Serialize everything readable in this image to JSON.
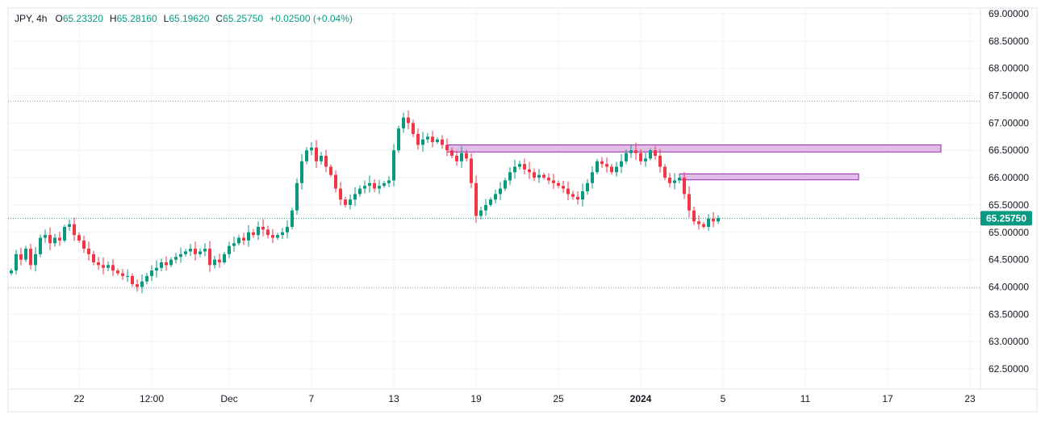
{
  "legend": {
    "symbol_tf": "JPY, 4h",
    "open_label": "O",
    "open": "65.23320",
    "high_label": "H",
    "high": "65.28160",
    "low_label": "L",
    "low": "65.19620",
    "close_label": "C",
    "close": "65.25750",
    "change": "+0.02500 (+0.04%)"
  },
  "colors": {
    "up": "#089981",
    "down": "#f23645",
    "grid": "#f0f3fa",
    "axis_text": "#131722",
    "dotted_line": "#9598a1",
    "last_price_line": "#089981",
    "zone_fill": "#e1bee7",
    "zone_stroke": "#9c27b0"
  },
  "chart_data": {
    "type": "candlestick",
    "title": "",
    "timeframe": "4h",
    "ylim": [
      62.0,
      69.2
    ],
    "yticks": [
      "69.00000",
      "68.50000",
      "68.00000",
      "67.50000",
      "67.00000",
      "66.50000",
      "66.00000",
      "65.50000",
      "65.00000",
      "64.50000",
      "64.00000",
      "63.50000",
      "63.00000",
      "62.50000"
    ],
    "ytick_values": [
      69.0,
      68.5,
      68.0,
      67.5,
      67.0,
      66.5,
      66.0,
      65.5,
      65.0,
      64.5,
      64.0,
      63.5,
      63.0,
      62.5
    ],
    "xticks": [
      {
        "label": "22",
        "bar": 14,
        "bold": false
      },
      {
        "label": "12:00",
        "bar": 29,
        "bold": false
      },
      {
        "label": "Dec",
        "bar": 45,
        "bold": false
      },
      {
        "label": "7",
        "bar": 62,
        "bold": false
      },
      {
        "label": "13",
        "bar": 79,
        "bold": false
      },
      {
        "label": "19",
        "bar": 96,
        "bold": false
      },
      {
        "label": "25",
        "bar": 113,
        "bold": false
      },
      {
        "label": "2024",
        "bar": 130,
        "bold": true
      },
      {
        "label": "5",
        "bar": 147,
        "bold": false
      },
      {
        "label": "11",
        "bar": 164,
        "bold": false
      },
      {
        "label": "17",
        "bar": 181,
        "bold": false
      },
      {
        "label": "23",
        "bar": 198,
        "bold": false
      }
    ],
    "last_price": 65.2575,
    "last_price_label": "65.25750",
    "horizontal_lines": [
      67.4,
      63.98
    ],
    "zones": [
      {
        "bar_start": 90,
        "bar_end": 192,
        "y_low": 66.47,
        "y_high": 66.6
      },
      {
        "bar_start": 138,
        "bar_end": 175,
        "y_low": 65.96,
        "y_high": 66.07
      }
    ],
    "closes": [
      64.3,
      64.6,
      64.5,
      64.7,
      64.4,
      64.6,
      64.9,
      64.95,
      64.8,
      64.9,
      64.85,
      65.1,
      65.15,
      64.95,
      64.85,
      64.7,
      64.6,
      64.45,
      64.4,
      64.35,
      64.4,
      64.3,
      64.25,
      64.2,
      64.2,
      64.05,
      64.0,
      64.1,
      64.2,
      64.3,
      64.35,
      64.45,
      64.4,
      64.5,
      64.55,
      64.6,
      64.65,
      64.7,
      64.6,
      64.65,
      64.7,
      64.4,
      64.5,
      64.45,
      64.6,
      64.75,
      64.8,
      64.9,
      64.85,
      65.0,
      64.95,
      65.1,
      65.05,
      64.95,
      64.9,
      64.95,
      65.0,
      65.1,
      65.4,
      65.9,
      66.3,
      66.5,
      66.55,
      66.3,
      66.4,
      66.2,
      66.05,
      65.8,
      65.6,
      65.5,
      65.6,
      65.7,
      65.8,
      65.85,
      65.9,
      65.8,
      65.85,
      65.9,
      65.95,
      66.5,
      66.9,
      67.1,
      67.0,
      66.8,
      66.6,
      66.7,
      66.75,
      66.65,
      66.7,
      66.6,
      66.5,
      66.4,
      66.3,
      66.45,
      66.35,
      65.9,
      65.3,
      65.4,
      65.5,
      65.6,
      65.7,
      65.8,
      65.95,
      66.1,
      66.2,
      66.25,
      66.15,
      66.1,
      66.0,
      66.05,
      66.0,
      65.95,
      65.9,
      65.85,
      65.8,
      65.7,
      65.65,
      65.6,
      65.75,
      65.9,
      66.1,
      66.3,
      66.25,
      66.2,
      66.1,
      66.2,
      66.3,
      66.45,
      66.5,
      66.45,
      66.3,
      66.35,
      66.5,
      66.4,
      66.2,
      66.0,
      65.9,
      65.95,
      66.0,
      65.7,
      65.4,
      65.2,
      65.15,
      65.1,
      65.25,
      65.2,
      65.26
    ]
  }
}
